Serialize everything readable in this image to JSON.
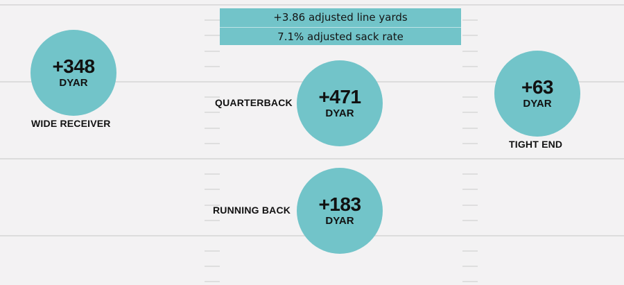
{
  "offensive_line": {
    "line_yards": "+3.86 adjusted line yards",
    "sack_rate": "7.1% adjusted sack rate"
  },
  "positions": {
    "wide_receiver": {
      "value": "+348",
      "unit": "DYAR",
      "label": "WIDE RECEIVER"
    },
    "quarterback": {
      "value": "+471",
      "unit": "DYAR",
      "label": "QUARTERBACK"
    },
    "tight_end": {
      "value": "+63",
      "unit": "DYAR",
      "label": "TIGHT END"
    },
    "running_back": {
      "value": "+183",
      "unit": "DYAR",
      "label": "RUNNING BACK"
    }
  },
  "colors": {
    "circle_fill": "#72c4c9",
    "background": "#f3f2f3",
    "text": "#111111"
  }
}
